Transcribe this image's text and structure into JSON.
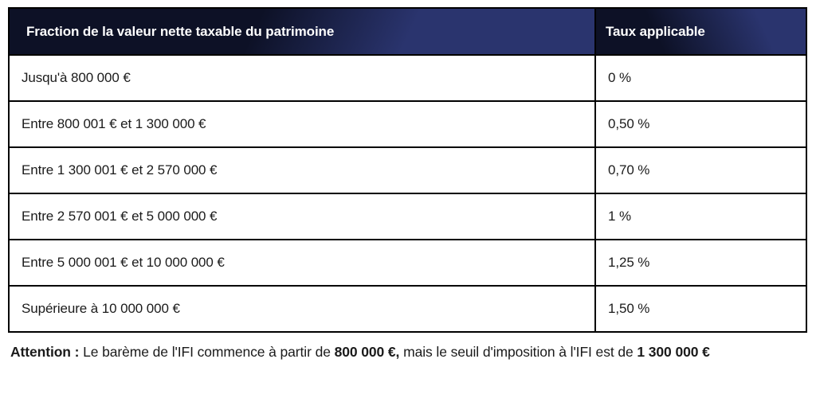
{
  "table": {
    "columns": [
      "Fraction de la valeur nette taxable du patrimoine",
      "Taux applicable"
    ],
    "rows": [
      {
        "fraction": "Jusqu'à 800 000 €",
        "taux": "0 %"
      },
      {
        "fraction": "Entre 800 001 € et 1 300 000 €",
        "taux": "0,50 %"
      },
      {
        "fraction": "Entre 1 300 001 € et 2 570 000 €",
        "taux": "0,70 %"
      },
      {
        "fraction": "Entre 2 570 001 € et 5 000 000 €",
        "taux": "1 %"
      },
      {
        "fraction": "Entre 5 000 001 € et 10 000 000 €",
        "taux": "1,25 %"
      },
      {
        "fraction": "Supérieure à 10 000 000 €",
        "taux": "1,50 %"
      }
    ]
  },
  "note": {
    "segments": [
      {
        "text": "Attention : ",
        "bold": true
      },
      {
        "text": "Le barème de l'IFI commence à partir de ",
        "bold": false
      },
      {
        "text": "800 000 €,",
        "bold": true
      },
      {
        "text": " mais le seuil d'imposition à l'IFI est de ",
        "bold": false
      },
      {
        "text": "1 300 000 €",
        "bold": true
      }
    ]
  },
  "colors": {
    "header_dark": "#0d1126",
    "header_light": "#2a346e",
    "border": "#000000",
    "header_text": "#ffffff",
    "body_text": "#1b1b1b",
    "background": "#ffffff"
  }
}
